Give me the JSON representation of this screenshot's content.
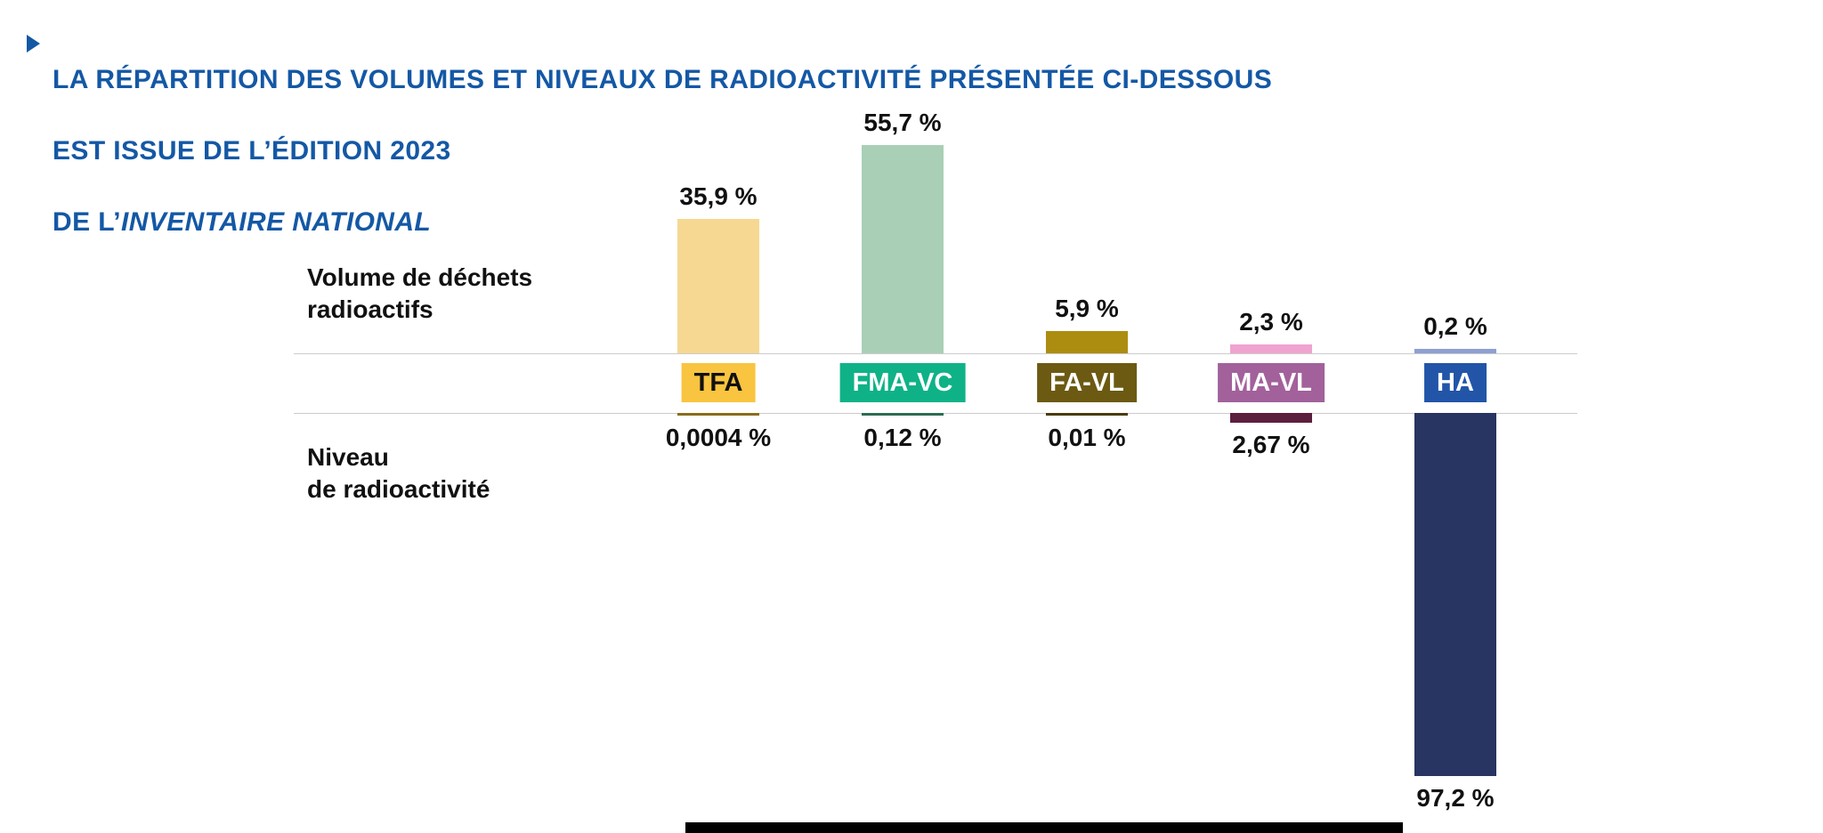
{
  "title": {
    "line1": "LA RÉPARTITION DES VOLUMES ET NIVEAUX DE RADIOACTIVITÉ PRÉSENTÉE CI-DESSOUS",
    "line2": "EST ISSUE DE L’ÉDITION 2023",
    "line3_prefix": "DE L’",
    "line3_italic": "INVENTAIRE NATIONAL"
  },
  "axis_labels": {
    "volume_line1": "Volume de déchets",
    "volume_line2": "radioactifs",
    "radio_line1": "Niveau",
    "radio_line2": "de radioactivité"
  },
  "colors": {
    "title_blue": "#1458A5",
    "axis_line_gray": "#CCCCCC"
  },
  "chart_data": {
    "type": "bar",
    "title": "Répartition des volumes et niveaux de radioactivité des déchets radioactifs (Inventaire national, édition 2023)",
    "categories": [
      "TFA",
      "FMA-VC",
      "FA-VL",
      "MA-VL",
      "HA"
    ],
    "unit": "%",
    "layout": "diverging: volume bars up, radioactivity bars down",
    "series": [
      {
        "name": "Volume de déchets radioactifs",
        "direction": "up",
        "values": [
          35.9,
          55.7,
          5.9,
          2.3,
          0.2
        ],
        "labels": [
          "35,9 %",
          "55,7 %",
          "5,9 %",
          "2,3 %",
          "0,2 %"
        ],
        "colors": [
          "#F6D892",
          "#A9CFB6",
          "#AC8D10",
          "#F0A3D0",
          "#8DA0D2"
        ]
      },
      {
        "name": "Niveau de radioactivité",
        "direction": "down",
        "values": [
          0.0004,
          0.12,
          0.01,
          2.67,
          97.2
        ],
        "labels": [
          "0,0004 %",
          "0,12 %",
          "0,01 %",
          "2,67 %",
          "97,2 %"
        ],
        "colors": [
          "#8A6D1E",
          "#2E6B52",
          "#4A3C0E",
          "#5C1F3E",
          "#283461"
        ]
      }
    ],
    "category_badges": [
      {
        "label": "TFA",
        "bg": "#F9C440",
        "fg": "#111111"
      },
      {
        "label": "FMA-VC",
        "bg": "#0FB287",
        "fg": "#FFFFFF"
      },
      {
        "label": "FA-VL",
        "bg": "#6C5A12",
        "fg": "#FFFFFF"
      },
      {
        "label": "MA-VL",
        "bg": "#A2619B",
        "fg": "#FFFFFF"
      },
      {
        "label": "HA",
        "bg": "#2255A8",
        "fg": "#FFFFFF"
      }
    ]
  }
}
